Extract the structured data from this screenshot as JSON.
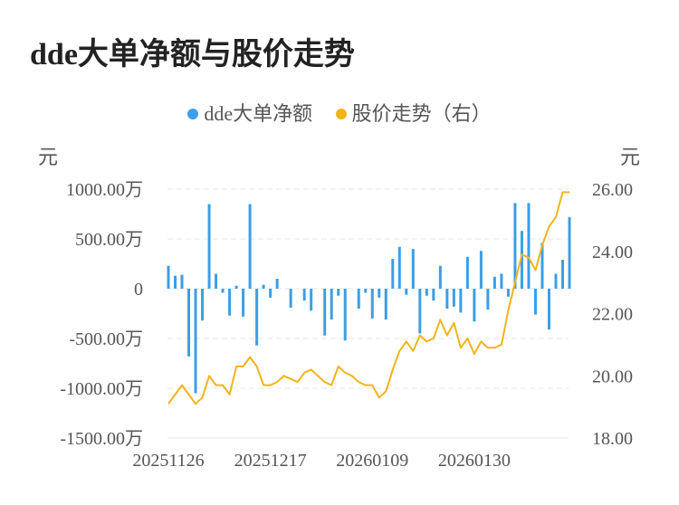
{
  "chart_data": {
    "type": "bar",
    "title": "dde大单净额与股价走势",
    "left_axis": {
      "unit": "元",
      "ticks": [
        "1000.00万",
        "500.00万",
        "0",
        "-500.00万",
        "-1000.00万",
        "-1500.00万"
      ],
      "ylim": [
        -1500,
        1000
      ],
      "unit_scale": "万"
    },
    "right_axis": {
      "unit": "元",
      "ticks": [
        "26.00",
        "24.00",
        "22.00",
        "20.00",
        "18.00"
      ],
      "ylim": [
        18,
        26
      ]
    },
    "x_tick_labels": [
      "20251126",
      "20251217",
      "20260109",
      "20260130"
    ],
    "x_tick_indices": [
      0,
      15,
      30,
      45
    ],
    "grid": true,
    "legend_position": "top",
    "colors": {
      "bar": "#3a9fe8",
      "line": "#f3b31b",
      "grid": "#e6e6e6"
    },
    "series": [
      {
        "name": "dde大单净额",
        "kind": "bar",
        "axis": "left",
        "values": [
          230,
          130,
          140,
          -680,
          -1050,
          -320,
          850,
          150,
          -40,
          -270,
          30,
          -280,
          850,
          -570,
          40,
          -90,
          100,
          0,
          -190,
          0,
          -120,
          -220,
          0,
          -470,
          -310,
          -70,
          -520,
          0,
          -200,
          -40,
          -300,
          -90,
          -310,
          300,
          420,
          -60,
          400,
          -450,
          -70,
          -120,
          230,
          -200,
          -180,
          -240,
          320,
          -330,
          380,
          -210,
          120,
          150,
          -80,
          860,
          580,
          860,
          -260,
          460,
          -410,
          150,
          290,
          720
        ]
      },
      {
        "name": "股价走势（右）",
        "kind": "line",
        "axis": "right",
        "values": [
          19.1,
          19.4,
          19.7,
          19.4,
          19.1,
          19.3,
          20.0,
          19.7,
          19.7,
          19.4,
          20.3,
          20.3,
          20.6,
          20.3,
          19.7,
          19.7,
          19.8,
          20.0,
          19.9,
          19.8,
          20.1,
          20.2,
          20.0,
          19.8,
          19.7,
          20.3,
          20.1,
          20.0,
          19.8,
          19.7,
          19.7,
          19.3,
          19.5,
          20.2,
          20.8,
          21.1,
          20.8,
          21.3,
          21.1,
          21.2,
          21.8,
          21.3,
          21.7,
          20.9,
          21.2,
          20.7,
          21.1,
          20.9,
          20.9,
          21.0,
          22.1,
          23.0,
          23.9,
          23.8,
          23.4,
          24.2,
          24.8,
          25.1,
          25.9,
          25.9
        ]
      }
    ]
  }
}
